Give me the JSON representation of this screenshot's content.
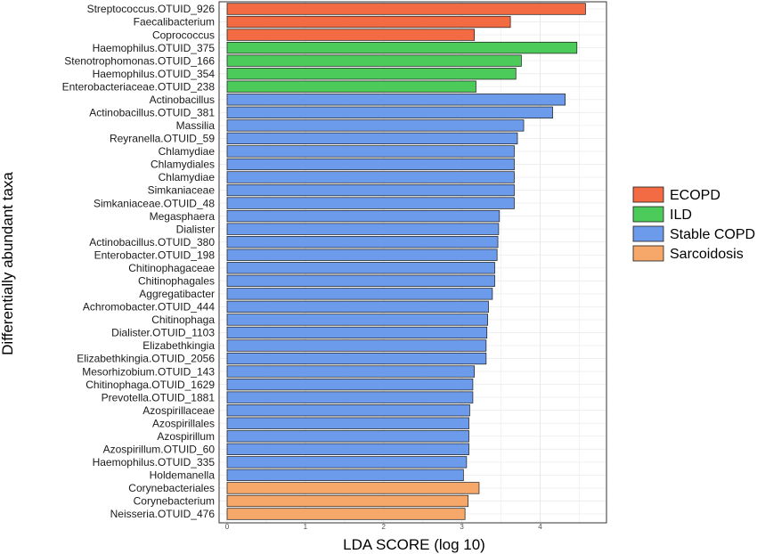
{
  "chart_data": {
    "type": "bar",
    "orientation": "horizontal",
    "xlabel": "LDA SCORE (log 10)",
    "ylabel": "Differentially abundant taxa",
    "xlim": [
      0,
      4.8
    ],
    "xticks": [
      0,
      1,
      2,
      3,
      4
    ],
    "grid": true,
    "legend_position": "right",
    "legend": [
      {
        "name": "ECOPD",
        "color": "#F26B43"
      },
      {
        "name": "ILD",
        "color": "#4CCB5B"
      },
      {
        "name": "Stable COPD",
        "color": "#6C9BEB"
      },
      {
        "name": "Sarcoidosis",
        "color": "#F5A86A"
      }
    ],
    "bars": [
      {
        "label": "Streptococcus.OTUID_926",
        "value": 4.58,
        "group": "ECOPD"
      },
      {
        "label": "Faecalibacterium",
        "value": 3.62,
        "group": "ECOPD"
      },
      {
        "label": "Coprococcus",
        "value": 3.16,
        "group": "ECOPD"
      },
      {
        "label": "Haemophilus.OTUID_375",
        "value": 4.47,
        "group": "ILD"
      },
      {
        "label": "Stenotrophomonas.OTUID_166",
        "value": 3.76,
        "group": "ILD"
      },
      {
        "label": "Haemophilus.OTUID_354",
        "value": 3.69,
        "group": "ILD"
      },
      {
        "label": "Enterobacteriaceae.OTUID_238",
        "value": 3.18,
        "group": "ILD"
      },
      {
        "label": "Actinobacillus",
        "value": 4.32,
        "group": "Stable COPD"
      },
      {
        "label": "Actinobacillus.OTUID_381",
        "value": 4.16,
        "group": "Stable COPD"
      },
      {
        "label": "Massilia",
        "value": 3.79,
        "group": "Stable COPD"
      },
      {
        "label": "Reyranella.OTUID_59",
        "value": 3.71,
        "group": "Stable COPD"
      },
      {
        "label": "Chlamydiae",
        "value": 3.67,
        "group": "Stable COPD"
      },
      {
        "label": "Chlamydiales",
        "value": 3.67,
        "group": "Stable COPD"
      },
      {
        "label": "Chlamydiae",
        "value": 3.67,
        "group": "Stable COPD"
      },
      {
        "label": "Simkaniaceae",
        "value": 3.67,
        "group": "Stable COPD"
      },
      {
        "label": "Simkaniaceae.OTUID_48",
        "value": 3.67,
        "group": "Stable COPD"
      },
      {
        "label": "Megasphaera",
        "value": 3.48,
        "group": "Stable COPD"
      },
      {
        "label": "Dialister",
        "value": 3.47,
        "group": "Stable COPD"
      },
      {
        "label": "Actinobacillus.OTUID_380",
        "value": 3.46,
        "group": "Stable COPD"
      },
      {
        "label": "Enterobacter.OTUID_198",
        "value": 3.45,
        "group": "Stable COPD"
      },
      {
        "label": "Chitinophagaceae",
        "value": 3.42,
        "group": "Stable COPD"
      },
      {
        "label": "Chitinophagales",
        "value": 3.42,
        "group": "Stable COPD"
      },
      {
        "label": "Aggregatibacter",
        "value": 3.39,
        "group": "Stable COPD"
      },
      {
        "label": "Achromobacter.OTUID_444",
        "value": 3.34,
        "group": "Stable COPD"
      },
      {
        "label": "Chitinophaga",
        "value": 3.33,
        "group": "Stable COPD"
      },
      {
        "label": "Dialister.OTUID_1103",
        "value": 3.32,
        "group": "Stable COPD"
      },
      {
        "label": "Elizabethkingia",
        "value": 3.31,
        "group": "Stable COPD"
      },
      {
        "label": "Elizabethkingia.OTUID_2056",
        "value": 3.31,
        "group": "Stable COPD"
      },
      {
        "label": "Mesorhizobium.OTUID_143",
        "value": 3.16,
        "group": "Stable COPD"
      },
      {
        "label": "Chitinophaga.OTUID_1629",
        "value": 3.14,
        "group": "Stable COPD"
      },
      {
        "label": "Prevotella.OTUID_1881",
        "value": 3.14,
        "group": "Stable COPD"
      },
      {
        "label": "Azospirillaceae",
        "value": 3.1,
        "group": "Stable COPD"
      },
      {
        "label": "Azospirillales",
        "value": 3.09,
        "group": "Stable COPD"
      },
      {
        "label": "Azospirillum",
        "value": 3.09,
        "group": "Stable COPD"
      },
      {
        "label": "Azospirillum.OTUID_60",
        "value": 3.09,
        "group": "Stable COPD"
      },
      {
        "label": "Haemophilus.OTUID_335",
        "value": 3.06,
        "group": "Stable COPD"
      },
      {
        "label": "Holdemanella",
        "value": 3.02,
        "group": "Stable COPD"
      },
      {
        "label": "Corynebacteriales",
        "value": 3.22,
        "group": "Sarcoidosis"
      },
      {
        "label": "Corynebacterium",
        "value": 3.08,
        "group": "Sarcoidosis"
      },
      {
        "label": "Neisseria.OTUID_476",
        "value": 3.04,
        "group": "Sarcoidosis"
      }
    ]
  }
}
